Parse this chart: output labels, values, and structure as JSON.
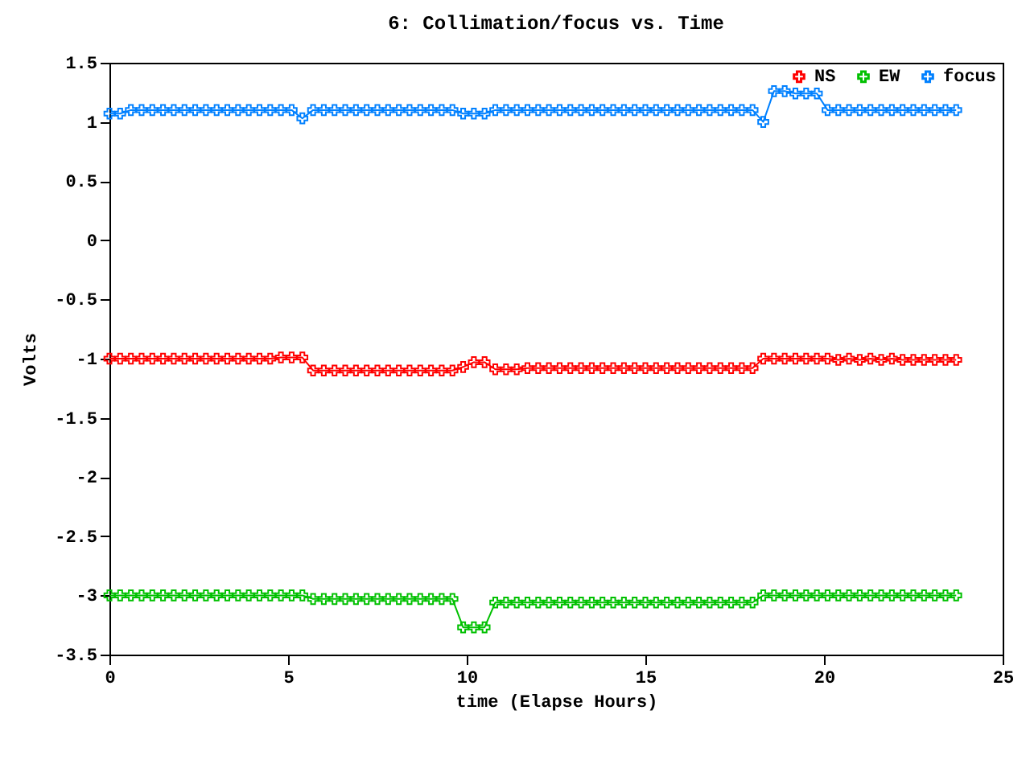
{
  "chart_data": {
    "type": "line",
    "title": "6: Collimation/focus vs. Time",
    "xlabel": "time (Elapse Hours)",
    "ylabel": "Volts",
    "x": [
      0,
      0.3,
      0.6,
      0.9,
      1.2,
      1.5,
      1.8,
      2.1,
      2.4,
      2.7,
      3.0,
      3.3,
      3.6,
      3.9,
      4.2,
      4.5,
      4.8,
      5.1,
      5.4,
      5.7,
      6.0,
      6.3,
      6.6,
      6.9,
      7.2,
      7.5,
      7.8,
      8.1,
      8.4,
      8.7,
      9.0,
      9.3,
      9.6,
      9.9,
      10.2,
      10.5,
      10.8,
      11.1,
      11.4,
      11.7,
      12.0,
      12.3,
      12.6,
      12.9,
      13.2,
      13.5,
      13.8,
      14.1,
      14.4,
      14.7,
      15.0,
      15.3,
      15.6,
      15.9,
      16.2,
      16.5,
      16.8,
      17.1,
      17.4,
      17.7,
      18.0,
      18.3,
      18.6,
      18.9,
      19.2,
      19.5,
      19.8,
      20.1,
      20.4,
      20.7,
      21.0,
      21.3,
      21.6,
      21.9,
      22.2,
      22.5,
      22.8,
      23.1,
      23.4,
      23.7
    ],
    "series": [
      {
        "name": "NS",
        "color": "#ff0000",
        "values": [
          -1.0,
          -1.0,
          -1.0,
          -1.0,
          -1.0,
          -1.0,
          -1.0,
          -1.0,
          -1.0,
          -1.0,
          -1.0,
          -1.0,
          -1.0,
          -1.0,
          -1.0,
          -1.0,
          -0.99,
          -0.99,
          -0.99,
          -1.1,
          -1.1,
          -1.1,
          -1.1,
          -1.1,
          -1.1,
          -1.1,
          -1.1,
          -1.1,
          -1.1,
          -1.1,
          -1.1,
          -1.1,
          -1.1,
          -1.07,
          -1.03,
          -1.03,
          -1.09,
          -1.09,
          -1.09,
          -1.08,
          -1.08,
          -1.08,
          -1.08,
          -1.08,
          -1.08,
          -1.08,
          -1.08,
          -1.08,
          -1.08,
          -1.08,
          -1.08,
          -1.08,
          -1.08,
          -1.08,
          -1.08,
          -1.08,
          -1.08,
          -1.08,
          -1.08,
          -1.08,
          -1.08,
          -1.0,
          -1.0,
          -1.0,
          -1.0,
          -1.0,
          -1.0,
          -1.0,
          -1.01,
          -1.0,
          -1.01,
          -1.0,
          -1.01,
          -1.0,
          -1.01,
          -1.01,
          -1.01,
          -1.01,
          -1.01,
          -1.01
        ]
      },
      {
        "name": "EW",
        "color": "#00c000",
        "values": [
          -3.0,
          -3.0,
          -3.0,
          -3.0,
          -3.0,
          -3.0,
          -3.0,
          -3.0,
          -3.0,
          -3.0,
          -3.0,
          -3.0,
          -3.0,
          -3.0,
          -3.0,
          -3.0,
          -3.0,
          -3.0,
          -3.0,
          -3.03,
          -3.03,
          -3.03,
          -3.03,
          -3.03,
          -3.03,
          -3.03,
          -3.03,
          -3.03,
          -3.03,
          -3.03,
          -3.03,
          -3.03,
          -3.03,
          -3.27,
          -3.27,
          -3.27,
          -3.06,
          -3.06,
          -3.06,
          -3.06,
          -3.06,
          -3.06,
          -3.06,
          -3.06,
          -3.06,
          -3.06,
          -3.06,
          -3.06,
          -3.06,
          -3.06,
          -3.06,
          -3.06,
          -3.06,
          -3.06,
          -3.06,
          -3.06,
          -3.06,
          -3.06,
          -3.06,
          -3.06,
          -3.06,
          -3.0,
          -3.0,
          -3.0,
          -3.0,
          -3.0,
          -3.0,
          -3.0,
          -3.0,
          -3.0,
          -3.0,
          -3.0,
          -3.0,
          -3.0,
          -3.0,
          -3.0,
          -3.0,
          -3.0,
          -3.0,
          -3.0
        ]
      },
      {
        "name": "focus",
        "color": "#0080ff",
        "values": [
          1.07,
          1.07,
          1.1,
          1.1,
          1.1,
          1.1,
          1.1,
          1.1,
          1.1,
          1.1,
          1.1,
          1.1,
          1.1,
          1.1,
          1.1,
          1.1,
          1.1,
          1.1,
          1.03,
          1.1,
          1.1,
          1.1,
          1.1,
          1.1,
          1.1,
          1.1,
          1.1,
          1.1,
          1.1,
          1.1,
          1.1,
          1.1,
          1.1,
          1.07,
          1.07,
          1.07,
          1.1,
          1.1,
          1.1,
          1.1,
          1.1,
          1.1,
          1.1,
          1.1,
          1.1,
          1.1,
          1.1,
          1.1,
          1.1,
          1.1,
          1.1,
          1.1,
          1.1,
          1.1,
          1.1,
          1.1,
          1.1,
          1.1,
          1.1,
          1.1,
          1.1,
          1.0,
          1.26,
          1.26,
          1.24,
          1.24,
          1.24,
          1.1,
          1.1,
          1.1,
          1.1,
          1.1,
          1.1,
          1.1,
          1.1,
          1.1,
          1.1,
          1.1,
          1.1,
          1.1
        ]
      }
    ],
    "xlim": [
      0,
      25
    ],
    "xticks": [
      0,
      5,
      10,
      15,
      20,
      25
    ],
    "ylim": [
      -3.5,
      1.5
    ],
    "yticks": [
      -3.5,
      -3,
      -2.5,
      -2,
      -1.5,
      -1,
      -0.5,
      0,
      0.5,
      1,
      1.5
    ],
    "grid": false,
    "legend": "top right",
    "marker": "cross",
    "line_style": "solid"
  }
}
